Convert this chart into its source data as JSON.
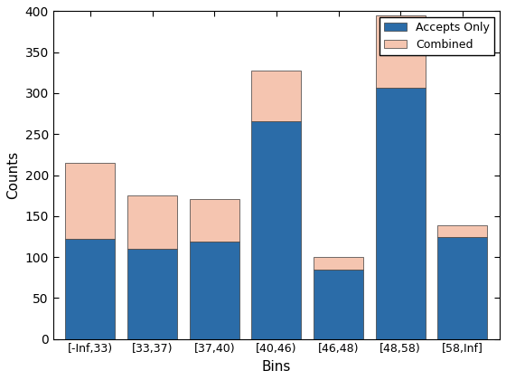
{
  "categories": [
    "[-Inf,33)",
    "[33,37)",
    "[37,40)",
    "[40,46)",
    "[46,48)",
    "[48,58)",
    "[58,Inf]"
  ],
  "accepts_only": [
    122,
    110,
    119,
    266,
    85,
    307,
    124
  ],
  "combined_total": [
    215,
    175,
    171,
    328,
    100,
    395,
    139
  ],
  "bar_color_blue": "#2b6ca8",
  "bar_color_pink": "#f5c5b0",
  "bar_edge_color": "#3a3a3a",
  "xlabel": "Bins",
  "ylabel": "Counts",
  "ylim": [
    0,
    400
  ],
  "yticks": [
    0,
    50,
    100,
    150,
    200,
    250,
    300,
    350,
    400
  ],
  "legend_labels": [
    "Accepts Only",
    "Combined"
  ],
  "bar_width": 0.8,
  "figsize": [
    5.6,
    4.2
  ],
  "dpi": 100
}
